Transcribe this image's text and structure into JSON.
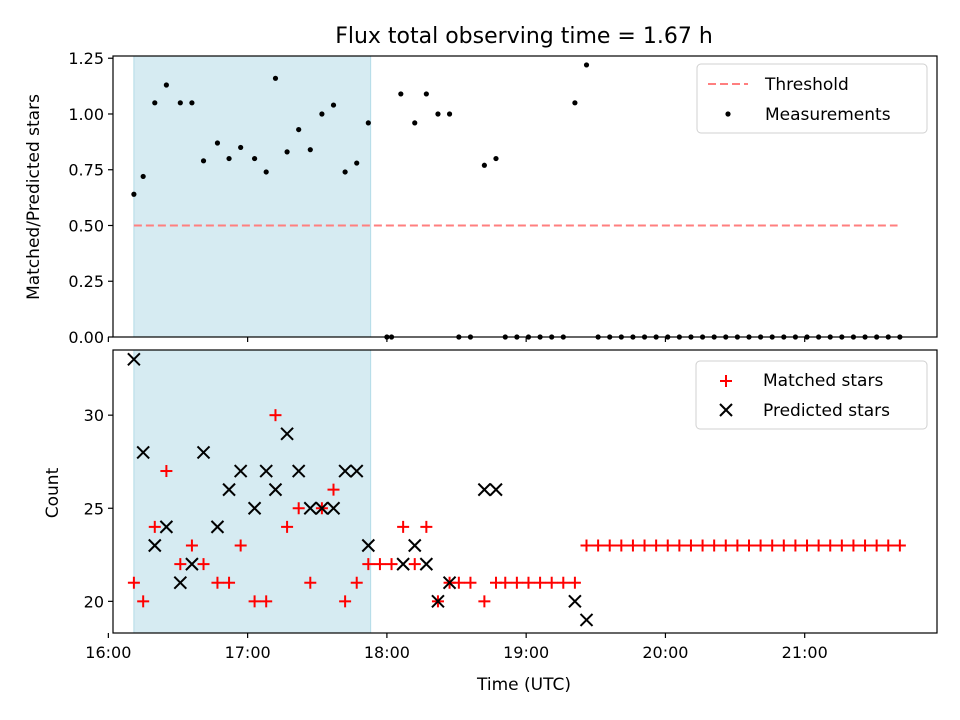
{
  "chart_data": [
    {
      "type": "scatter",
      "title": "Flux total observing time = 1.67 h",
      "ylabel": "Matched/Predicted stars",
      "xlabel": "",
      "xlim": [
        "16:02",
        "21:57"
      ],
      "ylim": [
        0,
        1.26
      ],
      "yticks": [
        "0.00",
        "0.25",
        "0.50",
        "0.75",
        "1.00",
        "1.25"
      ],
      "shaded_span": [
        "16:11",
        "17:53"
      ],
      "grid": false,
      "legend": {
        "position": "top-right",
        "entries": [
          "Threshold",
          "Measurements"
        ]
      },
      "threshold": {
        "name": "Threshold",
        "value": 0.5,
        "x_start": "16:11",
        "x_end": "21:40",
        "color": "#ff7f7f",
        "style": "dashed"
      },
      "series": [
        {
          "name": "Measurements",
          "color": "#000000",
          "points": [
            [
              "16:11",
              0.64
            ],
            [
              "16:15",
              0.72
            ],
            [
              "16:20",
              1.05
            ],
            [
              "16:25",
              1.13
            ],
            [
              "16:31",
              1.05
            ],
            [
              "16:36",
              1.05
            ],
            [
              "16:41",
              0.79
            ],
            [
              "16:47",
              0.87
            ],
            [
              "16:52",
              0.8
            ],
            [
              "16:57",
              0.85
            ],
            [
              "17:03",
              0.8
            ],
            [
              "17:08",
              0.74
            ],
            [
              "17:12",
              1.16
            ],
            [
              "17:17",
              0.83
            ],
            [
              "17:22",
              0.93
            ],
            [
              "17:27",
              0.84
            ],
            [
              "17:32",
              1.0
            ],
            [
              "17:37",
              1.04
            ],
            [
              "17:42",
              0.74
            ],
            [
              "17:47",
              0.78
            ],
            [
              "17:52",
              0.96
            ],
            [
              "18:00",
              0.0
            ],
            [
              "18:02",
              0.0
            ],
            [
              "18:06",
              1.09
            ],
            [
              "18:12",
              0.96
            ],
            [
              "18:17",
              1.09
            ],
            [
              "18:22",
              1.0
            ],
            [
              "18:27",
              1.0
            ],
            [
              "18:31",
              0.0
            ],
            [
              "18:36",
              0.0
            ],
            [
              "18:42",
              0.77
            ],
            [
              "18:47",
              0.8
            ],
            [
              "18:51",
              0.0
            ],
            [
              "18:56",
              0.0
            ],
            [
              "19:01",
              0.0
            ],
            [
              "19:06",
              0.0
            ],
            [
              "19:11",
              0.0
            ],
            [
              "19:16",
              0.0
            ],
            [
              "19:21",
              1.05
            ],
            [
              "19:26",
              1.22
            ],
            [
              "19:31",
              0.0
            ],
            [
              "19:36",
              0.0
            ],
            [
              "19:41",
              0.0
            ],
            [
              "19:46",
              0.0
            ],
            [
              "19:51",
              0.0
            ],
            [
              "19:56",
              0.0
            ],
            [
              "20:01",
              0.0
            ],
            [
              "20:06",
              0.0
            ],
            [
              "20:11",
              0.0
            ],
            [
              "20:16",
              0.0
            ],
            [
              "20:21",
              0.0
            ],
            [
              "20:26",
              0.0
            ],
            [
              "20:31",
              0.0
            ],
            [
              "20:36",
              0.0
            ],
            [
              "20:41",
              0.0
            ],
            [
              "20:46",
              0.0
            ],
            [
              "20:51",
              0.0
            ],
            [
              "20:56",
              0.0
            ],
            [
              "21:01",
              0.0
            ],
            [
              "21:06",
              0.0
            ],
            [
              "21:11",
              0.0
            ],
            [
              "21:16",
              0.0
            ],
            [
              "21:21",
              0.0
            ],
            [
              "21:26",
              0.0
            ],
            [
              "21:31",
              0.0
            ],
            [
              "21:36",
              0.0
            ],
            [
              "21:41",
              0.0
            ]
          ]
        }
      ]
    },
    {
      "type": "scatter",
      "title": "",
      "ylabel": "Count",
      "xlabel": "Time (UTC)",
      "xlim": [
        "16:02",
        "21:57"
      ],
      "ylim": [
        18.3,
        33.5
      ],
      "yticks": [
        "20",
        "25",
        "30"
      ],
      "xticks": [
        "16:00",
        "17:00",
        "18:00",
        "19:00",
        "20:00",
        "21:00"
      ],
      "shaded_span": [
        "16:11",
        "17:53"
      ],
      "grid": false,
      "legend": {
        "position": "top-right",
        "entries": [
          "Matched stars",
          "Predicted stars"
        ]
      },
      "series": [
        {
          "name": "Matched stars",
          "marker": "plus",
          "color": "#ff0000",
          "points": [
            [
              "16:11",
              21
            ],
            [
              "16:15",
              20
            ],
            [
              "16:20",
              24
            ],
            [
              "16:25",
              27
            ],
            [
              "16:31",
              22
            ],
            [
              "16:36",
              23
            ],
            [
              "16:41",
              22
            ],
            [
              "16:47",
              21
            ],
            [
              "16:52",
              21
            ],
            [
              "16:57",
              23
            ],
            [
              "17:03",
              20
            ],
            [
              "17:08",
              20
            ],
            [
              "17:12",
              30
            ],
            [
              "17:17",
              24
            ],
            [
              "17:22",
              25
            ],
            [
              "17:27",
              21
            ],
            [
              "17:32",
              25
            ],
            [
              "17:37",
              26
            ],
            [
              "17:42",
              20
            ],
            [
              "17:47",
              21
            ],
            [
              "17:52",
              22
            ],
            [
              "17:57",
              22
            ],
            [
              "18:02",
              22
            ],
            [
              "18:07",
              24
            ],
            [
              "18:12",
              22
            ],
            [
              "18:17",
              24
            ],
            [
              "18:22",
              20
            ],
            [
              "18:27",
              21
            ],
            [
              "18:31",
              21
            ],
            [
              "18:36",
              21
            ],
            [
              "18:42",
              20
            ],
            [
              "18:47",
              21
            ],
            [
              "18:51",
              21
            ],
            [
              "18:56",
              21
            ],
            [
              "19:01",
              21
            ],
            [
              "19:06",
              21
            ],
            [
              "19:11",
              21
            ],
            [
              "19:16",
              21
            ],
            [
              "19:21",
              21
            ],
            [
              "19:26",
              23
            ],
            [
              "19:31",
              23
            ],
            [
              "19:36",
              23
            ],
            [
              "19:41",
              23
            ],
            [
              "19:46",
              23
            ],
            [
              "19:51",
              23
            ],
            [
              "19:56",
              23
            ],
            [
              "20:01",
              23
            ],
            [
              "20:06",
              23
            ],
            [
              "20:11",
              23
            ],
            [
              "20:16",
              23
            ],
            [
              "20:21",
              23
            ],
            [
              "20:26",
              23
            ],
            [
              "20:31",
              23
            ],
            [
              "20:36",
              23
            ],
            [
              "20:41",
              23
            ],
            [
              "20:46",
              23
            ],
            [
              "20:51",
              23
            ],
            [
              "20:56",
              23
            ],
            [
              "21:01",
              23
            ],
            [
              "21:06",
              23
            ],
            [
              "21:11",
              23
            ],
            [
              "21:16",
              23
            ],
            [
              "21:21",
              23
            ],
            [
              "21:26",
              23
            ],
            [
              "21:31",
              23
            ],
            [
              "21:36",
              23
            ],
            [
              "21:41",
              23
            ]
          ]
        },
        {
          "name": "Predicted stars",
          "marker": "x",
          "color": "#000000",
          "points": [
            [
              "16:11",
              33
            ],
            [
              "16:15",
              28
            ],
            [
              "16:20",
              23
            ],
            [
              "16:25",
              24
            ],
            [
              "16:31",
              21
            ],
            [
              "16:36",
              22
            ],
            [
              "16:41",
              28
            ],
            [
              "16:47",
              24
            ],
            [
              "16:52",
              26
            ],
            [
              "16:57",
              27
            ],
            [
              "17:03",
              25
            ],
            [
              "17:08",
              27
            ],
            [
              "17:12",
              26
            ],
            [
              "17:17",
              29
            ],
            [
              "17:22",
              27
            ],
            [
              "17:27",
              25
            ],
            [
              "17:32",
              25
            ],
            [
              "17:37",
              25
            ],
            [
              "17:42",
              27
            ],
            [
              "17:47",
              27
            ],
            [
              "17:52",
              23
            ],
            [
              "18:07",
              22
            ],
            [
              "18:12",
              23
            ],
            [
              "18:17",
              22
            ],
            [
              "18:22",
              20
            ],
            [
              "18:27",
              21
            ],
            [
              "18:42",
              26
            ],
            [
              "18:47",
              26
            ],
            [
              "19:21",
              20
            ],
            [
              "19:26",
              19
            ]
          ]
        }
      ]
    }
  ]
}
